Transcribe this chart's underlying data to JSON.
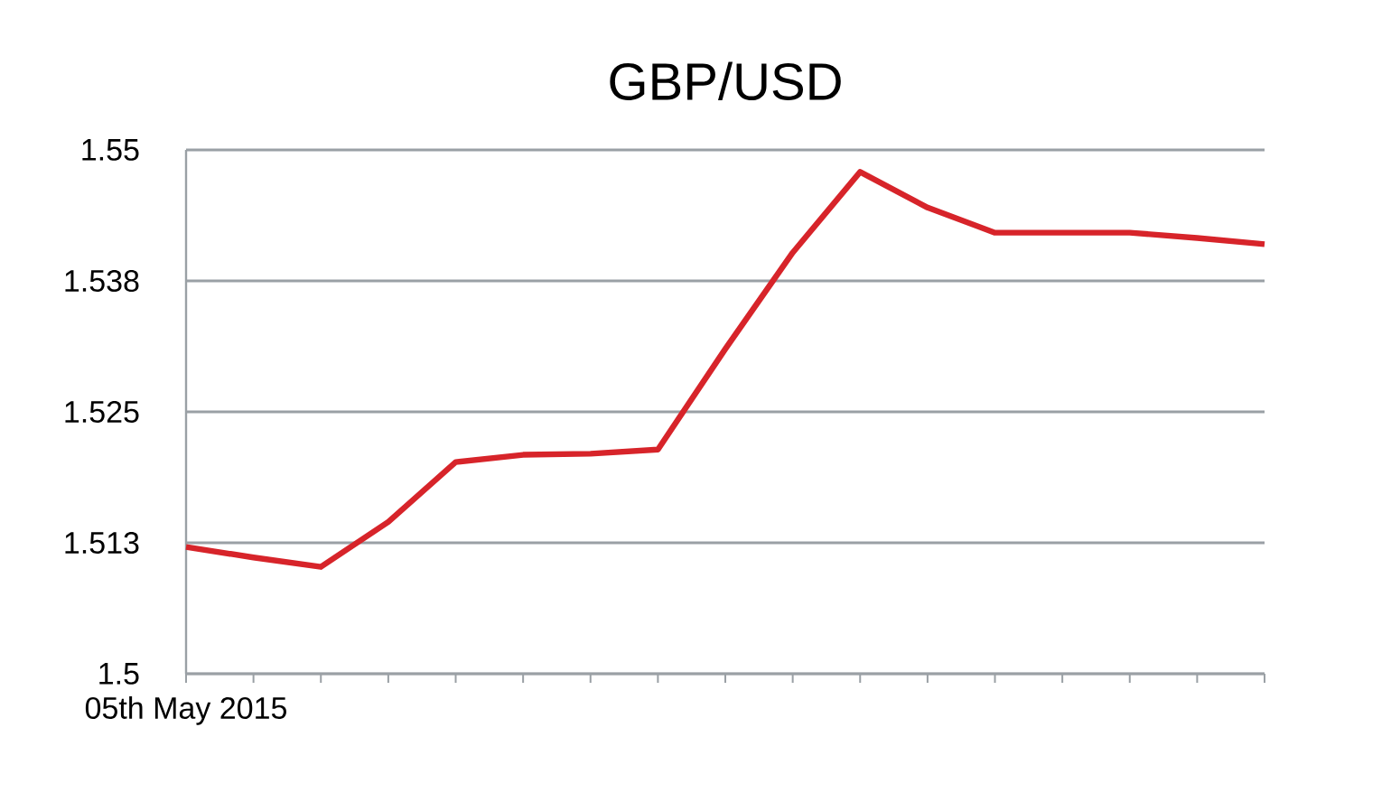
{
  "chart_data": {
    "type": "line",
    "title": "GBP/USD",
    "categories": [
      "05th May 2015",
      null,
      null,
      null,
      null,
      null,
      null,
      null,
      null,
      null,
      null,
      null,
      null,
      null,
      null,
      null,
      null
    ],
    "series": [
      {
        "color": "#d7242a",
        "values": [
          1.5121,
          1.5111,
          1.5102,
          1.5145,
          1.5202,
          1.5209,
          1.521,
          1.5214,
          1.531,
          1.5402,
          1.5479,
          1.5445,
          1.5421,
          1.5421,
          1.5421,
          1.5416,
          1.541
        ]
      }
    ],
    "ylim": [
      1.5,
      1.55
    ],
    "yticks": [
      1.5,
      {
        "value": 1.5125,
        "label": "1.513"
      },
      1.525,
      {
        "value": 1.5375,
        "label": "1.538"
      },
      1.55
    ],
    "grid": "y",
    "marker": "none",
    "line_style": "solid"
  }
}
